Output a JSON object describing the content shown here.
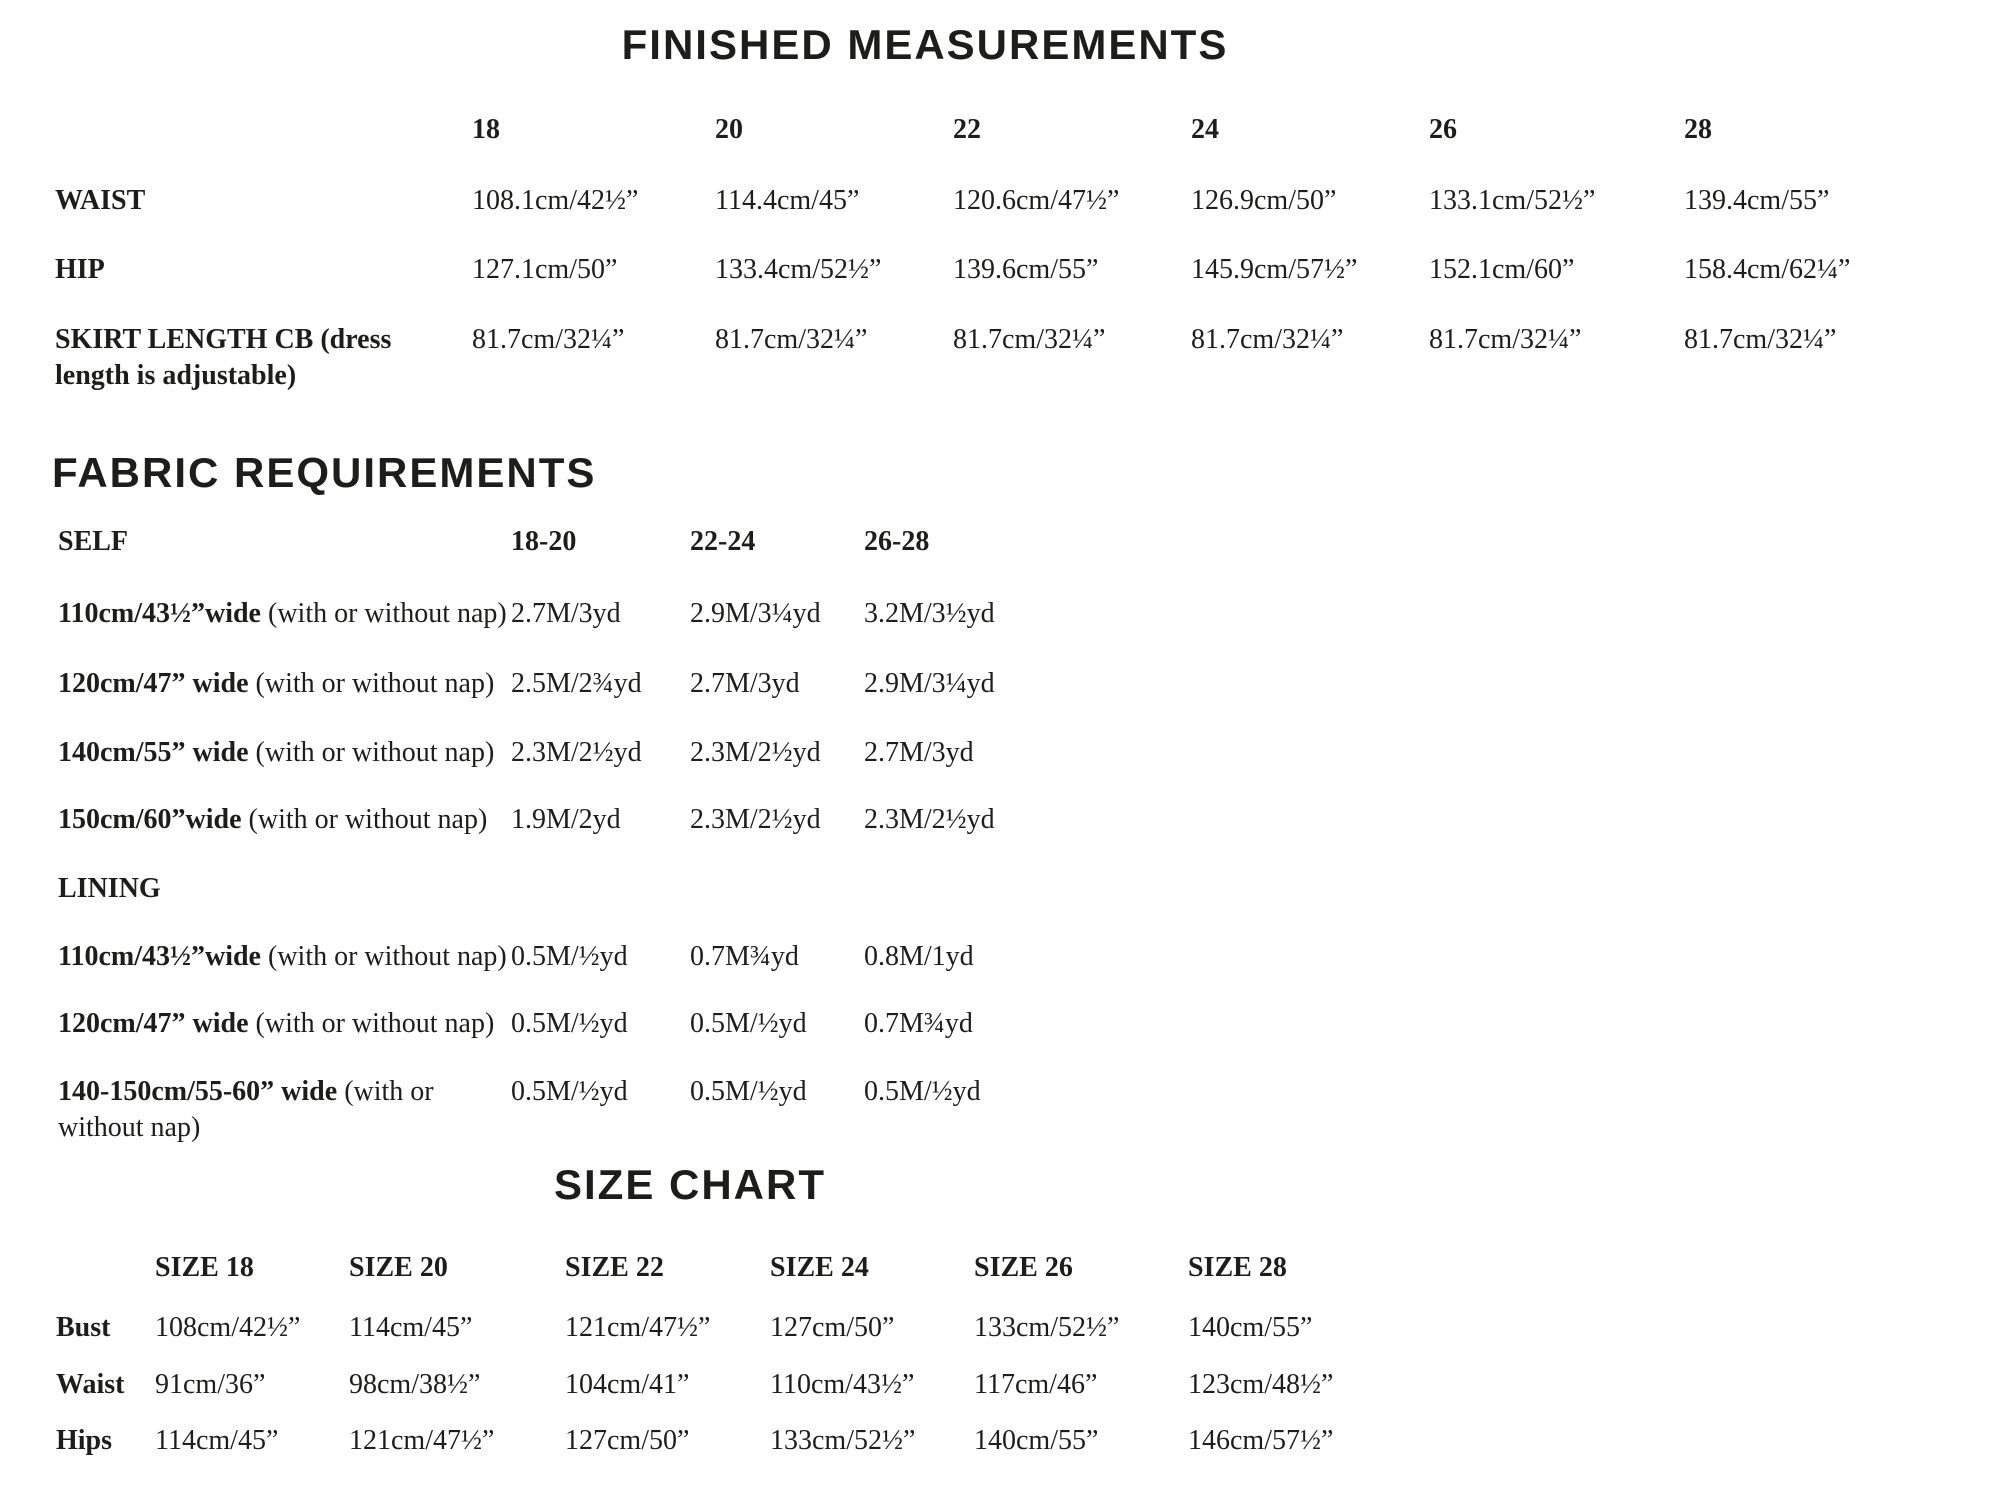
{
  "finished_measurements": {
    "title": "FINISHED MEASUREMENTS",
    "size_headers": [
      "18",
      "20",
      "22",
      "24",
      "26",
      "28"
    ],
    "rows": [
      {
        "label": "WAIST",
        "values": [
          "108.1cm/42½”",
          "114.4cm/45”",
          "120.6cm/47½”",
          "126.9cm/50”",
          "133.1cm/52½”",
          "139.4cm/55”"
        ]
      },
      {
        "label": "HIP",
        "values": [
          "127.1cm/50”",
          "133.4cm/52½”",
          "139.6cm/55”",
          "145.9cm/57½”",
          "152.1cm/60”",
          "158.4cm/62¼”"
        ]
      },
      {
        "label": "SKIRT LENGTH CB (dress length is adjustable)",
        "values": [
          "81.7cm/32¼”",
          "81.7cm/32¼”",
          "81.7cm/32¼”",
          "81.7cm/32¼”",
          "81.7cm/32¼”",
          "81.7cm/32¼”"
        ]
      }
    ]
  },
  "fabric_requirements": {
    "title": "FABRIC REQUIREMENTS",
    "size_headers": [
      "18-20",
      "22-24",
      "26-28"
    ],
    "self_section": {
      "label": "SELF",
      "rows": [
        {
          "width": "110cm/43½”wide",
          "nap": "(with or without nap)",
          "values": [
            "2.7M/3yd",
            "2.9M/3¼yd",
            "3.2M/3½yd"
          ]
        },
        {
          "width": "120cm/47” wide",
          "nap": "(with or without nap)",
          "values": [
            "2.5M/2¾yd",
            "2.7M/3yd",
            "2.9M/3¼yd"
          ]
        },
        {
          "width": "140cm/55” wide",
          "nap": "(with or without nap)",
          "values": [
            "2.3M/2½yd",
            "2.3M/2½yd",
            "2.7M/3yd"
          ]
        },
        {
          "width": "150cm/60”wide",
          "nap": "(with or without nap)",
          "values": [
            "1.9M/2yd",
            "2.3M/2½yd",
            "2.3M/2½yd"
          ]
        }
      ]
    },
    "lining_section": {
      "label": "LINING",
      "rows": [
        {
          "width": "110cm/43½”wide",
          "nap": "(with or without nap)",
          "values": [
            "0.5M/½yd",
            "0.7M¾yd",
            "0.8M/1yd"
          ]
        },
        {
          "width": "120cm/47” wide",
          "nap": "(with or without nap)",
          "values": [
            "0.5M/½yd",
            "0.5M/½yd",
            "0.7M¾yd"
          ]
        },
        {
          "width": "140-150cm/55-60” wide",
          "nap": "(with or without nap)",
          "values": [
            "0.5M/½yd",
            "0.5M/½yd",
            "0.5M/½yd"
          ]
        }
      ]
    }
  },
  "size_chart": {
    "title": "SIZE CHART",
    "size_headers": [
      "SIZE 18",
      "SIZE 20",
      "SIZE 22",
      "SIZE 24",
      "SIZE 26",
      "SIZE 28"
    ],
    "rows": [
      {
        "label": "Bust",
        "values": [
          "108cm/42½”",
          "114cm/45”",
          "121cm/47½”",
          "127cm/50”",
          "133cm/52½”",
          "140cm/55”"
        ]
      },
      {
        "label": "Waist",
        "values": [
          "91cm/36”",
          "98cm/38½”",
          "104cm/41”",
          "110cm/43½”",
          "117cm/46”",
          "123cm/48½”"
        ]
      },
      {
        "label": "Hips",
        "values": [
          "114cm/45”",
          "121cm/47½”",
          "127cm/50”",
          "133cm/52½”",
          "140cm/55”",
          "146cm/57½”"
        ]
      }
    ]
  }
}
